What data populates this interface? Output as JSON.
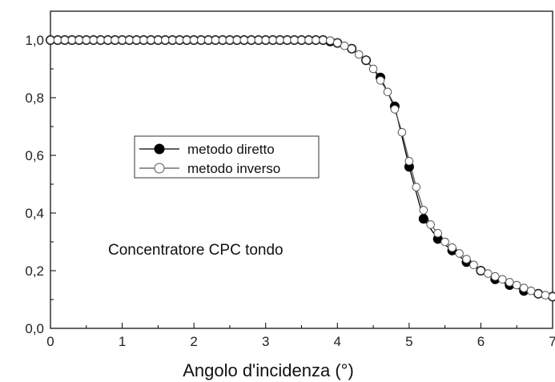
{
  "chart_data": {
    "type": "line",
    "xlabel": "Angolo d'incidenza (°)",
    "ylabel": "",
    "annotation": "Concentratore CPC tondo",
    "xlim": [
      0,
      7
    ],
    "ylim": [
      0,
      1.1
    ],
    "x_ticks": [
      "0",
      "1",
      "2",
      "3",
      "4",
      "5",
      "6",
      "7"
    ],
    "y_ticks": [
      "0,0",
      "0,2",
      "0,4",
      "0,6",
      "0,8",
      "1,0"
    ],
    "grid": false,
    "legend_position": "middle-left",
    "series": [
      {
        "name": "metodo diretto",
        "marker": "filled-circle",
        "color": "#000000",
        "x": [
          0,
          0.1,
          0.2,
          0.3,
          0.4,
          0.5,
          0.6,
          0.7,
          0.8,
          0.9,
          1.0,
          1.1,
          1.2,
          1.3,
          1.4,
          1.5,
          1.6,
          1.7,
          1.8,
          1.9,
          2.0,
          2.1,
          2.2,
          2.3,
          2.4,
          2.5,
          2.6,
          2.7,
          2.8,
          2.9,
          3.0,
          3.1,
          3.2,
          3.3,
          3.4,
          3.5,
          3.6,
          3.7,
          3.8,
          3.9,
          4.0,
          4.2,
          4.4,
          4.6,
          4.8,
          5.0,
          5.2,
          5.4,
          5.6,
          5.8,
          6.0,
          6.2,
          6.4,
          6.6,
          6.8,
          7.0
        ],
        "y": [
          1.0,
          1.0,
          1.0,
          1.0,
          1.0,
          1.0,
          1.0,
          1.0,
          1.0,
          1.0,
          1.0,
          1.0,
          1.0,
          1.0,
          1.0,
          1.0,
          1.0,
          1.0,
          1.0,
          1.0,
          1.0,
          1.0,
          1.0,
          1.0,
          1.0,
          1.0,
          1.0,
          1.0,
          1.0,
          1.0,
          1.0,
          1.0,
          1.0,
          1.0,
          1.0,
          1.0,
          1.0,
          1.0,
          1.0,
          0.995,
          0.99,
          0.97,
          0.93,
          0.87,
          0.77,
          0.56,
          0.38,
          0.31,
          0.27,
          0.23,
          0.2,
          0.17,
          0.15,
          0.13,
          0.12,
          0.11
        ]
      },
      {
        "name": "metodo inverso",
        "marker": "open-circle",
        "color": "#555555",
        "x": [
          0,
          0.1,
          0.2,
          0.3,
          0.4,
          0.5,
          0.6,
          0.7,
          0.8,
          0.9,
          1.0,
          1.1,
          1.2,
          1.3,
          1.4,
          1.5,
          1.6,
          1.7,
          1.8,
          1.9,
          2.0,
          2.1,
          2.2,
          2.3,
          2.4,
          2.5,
          2.6,
          2.7,
          2.8,
          2.9,
          3.0,
          3.1,
          3.2,
          3.3,
          3.4,
          3.5,
          3.6,
          3.7,
          3.8,
          3.9,
          4.0,
          4.1,
          4.2,
          4.3,
          4.4,
          4.5,
          4.6,
          4.7,
          4.8,
          4.9,
          5.0,
          5.1,
          5.2,
          5.3,
          5.4,
          5.5,
          5.6,
          5.7,
          5.8,
          5.9,
          6.0,
          6.1,
          6.2,
          6.3,
          6.4,
          6.5,
          6.6,
          6.7,
          6.8,
          6.9,
          7.0
        ],
        "y": [
          1.0,
          1.0,
          1.0,
          1.0,
          1.0,
          1.0,
          1.0,
          1.0,
          1.0,
          1.0,
          1.0,
          1.0,
          1.0,
          1.0,
          1.0,
          1.0,
          1.0,
          1.0,
          1.0,
          1.0,
          1.0,
          1.0,
          1.0,
          1.0,
          1.0,
          1.0,
          1.0,
          1.0,
          1.0,
          1.0,
          1.0,
          1.0,
          1.0,
          1.0,
          1.0,
          1.0,
          1.0,
          1.0,
          1.0,
          0.998,
          0.99,
          0.98,
          0.97,
          0.95,
          0.93,
          0.9,
          0.86,
          0.82,
          0.76,
          0.68,
          0.58,
          0.49,
          0.41,
          0.36,
          0.33,
          0.3,
          0.28,
          0.26,
          0.24,
          0.22,
          0.2,
          0.19,
          0.18,
          0.17,
          0.16,
          0.15,
          0.14,
          0.13,
          0.12,
          0.115,
          0.11
        ]
      }
    ]
  }
}
